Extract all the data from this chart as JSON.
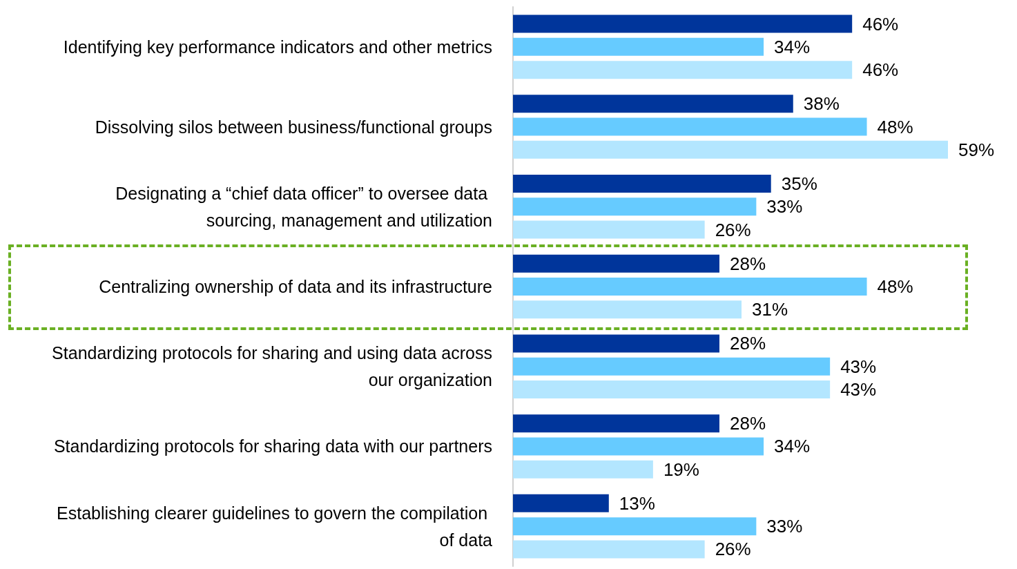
{
  "chart_data": {
    "type": "bar",
    "orientation": "horizontal",
    "categories": [
      "Identifying key performance indicators and other metrics",
      "Dissolving silos between business/functional groups",
      "Designating a “chief data officer” to oversee data sourcing, management and utilization",
      "Centralizing ownership of data and its infrastructure",
      "Standardizing protocols for sharing and using data across our organization",
      "Standardizing protocols for sharing data with our partners",
      "Establishing clearer guidelines to govern the compilation of data"
    ],
    "series": [
      {
        "color": "#00359b",
        "values": [
          46,
          38,
          35,
          28,
          28,
          28,
          13
        ],
        "value_labels": [
          "46%",
          "38%",
          "35%",
          "28%",
          "28%",
          "28%",
          "13%"
        ]
      },
      {
        "color": "#66cbff",
        "values": [
          34,
          48,
          33,
          48,
          43,
          34,
          33
        ],
        "value_labels": [
          "34%",
          "48%",
          "33%",
          "48%",
          "43%",
          "34%",
          "33%"
        ]
      },
      {
        "color": "#b3e6ff",
        "values": [
          46,
          59,
          26,
          31,
          43,
          19,
          26
        ],
        "value_labels": [
          "46%",
          "59%",
          "26%",
          "31%",
          "43%",
          "19%",
          "26%"
        ]
      }
    ]
  }
}
